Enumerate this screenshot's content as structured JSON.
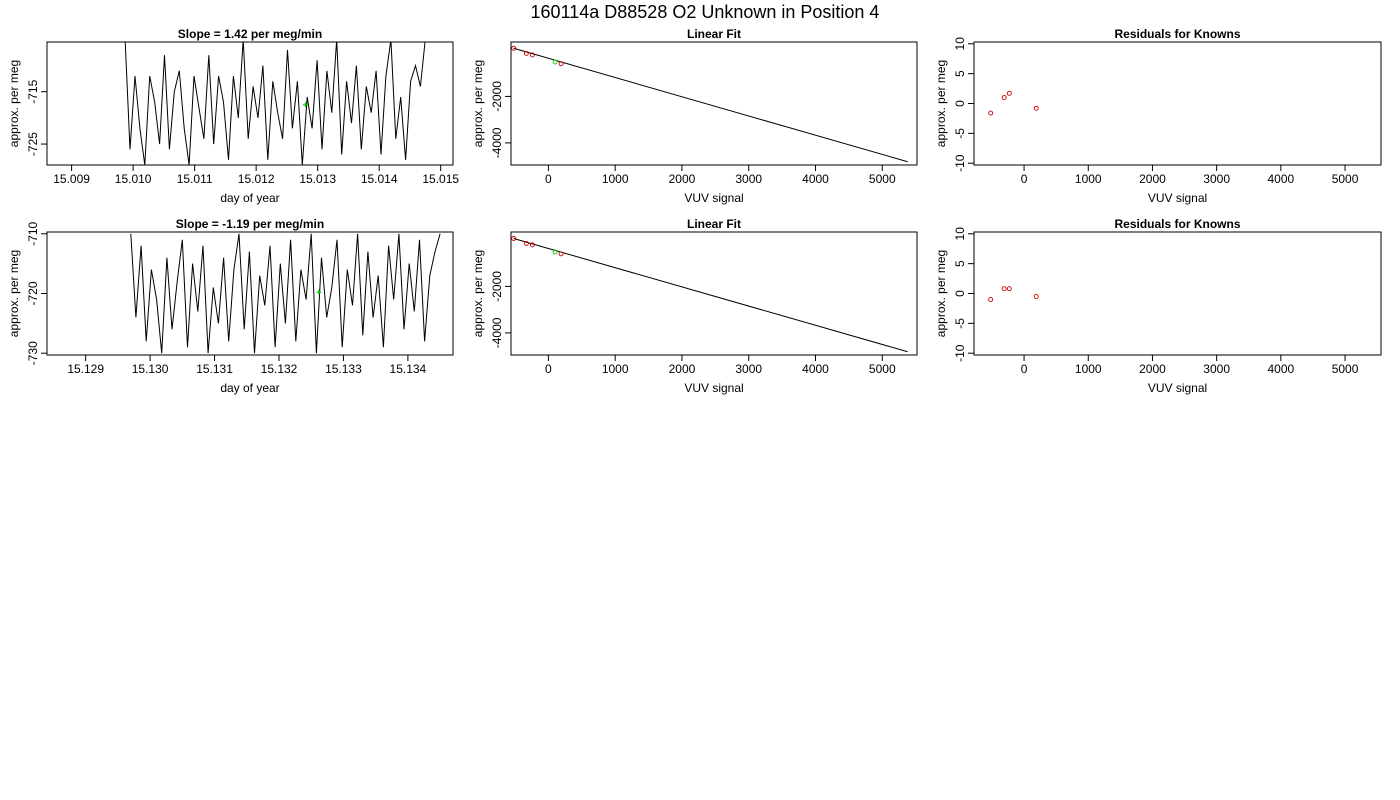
{
  "page_title": "160114a     D88528   O2 Unknown in Position  4",
  "chart_data": [
    {
      "type": "line",
      "title": "Slope =  1.42  per meg/min",
      "xlabel": "day of year",
      "ylabel": "approx. per meg",
      "xlim": [
        15.0086,
        15.0152
      ],
      "ylim": [
        -729,
        -705.5
      ],
      "xticks": [
        "15.009",
        "15.010",
        "15.011",
        "15.012",
        "15.013",
        "15.014",
        "15.015"
      ],
      "xtick_values": [
        15.009,
        15.01,
        15.011,
        15.012,
        15.013,
        15.014,
        15.015
      ],
      "yticks": [
        "-715",
        "-725"
      ],
      "ytick_values": [
        -715,
        -725
      ],
      "line_color": "#000000",
      "highlight_color": "#00cc00",
      "series": [
        {
          "x": [
            15.00987,
            15.00995,
            15.01003,
            15.01011,
            15.01019,
            15.01027,
            15.01035,
            15.01043,
            15.01051,
            15.01059,
            15.01067,
            15.01075,
            15.01083,
            15.01091,
            15.01099,
            15.01107,
            15.01115,
            15.01123,
            15.01131,
            15.01139,
            15.01147,
            15.01155,
            15.01163,
            15.01171,
            15.01179,
            15.01187,
            15.01195,
            15.01203,
            15.01211,
            15.01219,
            15.01227,
            15.01235,
            15.01243,
            15.01251,
            15.01259,
            15.01267,
            15.01275,
            15.01283,
            15.01291,
            15.01299,
            15.01307,
            15.01315,
            15.01323,
            15.01331,
            15.01339,
            15.01347,
            15.01355,
            15.01363,
            15.01371,
            15.01379,
            15.01387,
            15.01395,
            15.01403,
            15.01411,
            15.01419,
            15.01427,
            15.01435,
            15.01443,
            15.01451,
            15.01459,
            15.01467,
            15.01475
          ],
          "y": [
            -705,
            -726,
            -712,
            -722,
            -729,
            -712,
            -717,
            -725,
            -708,
            -726,
            -715,
            -711,
            -722,
            -729,
            -712,
            -718,
            -724,
            -708,
            -725,
            -712,
            -717,
            -728,
            -712,
            -720,
            -705,
            -724,
            -714,
            -720,
            -710,
            -728,
            -713,
            -719,
            -724,
            -707,
            -722,
            -713,
            -729,
            -716,
            -722,
            -709,
            -726,
            -711,
            -719,
            -705,
            -727,
            -713,
            -721,
            -710,
            -726,
            -714,
            -719,
            -711,
            -727,
            -712,
            -705,
            -724,
            -716,
            -728,
            -713,
            -710,
            -714,
            -705
          ]
        }
      ],
      "highlight_point": {
        "x": 15.0128,
        "y": -717.5
      }
    },
    {
      "type": "scatter",
      "title": "Linear Fit",
      "xlabel": "VUV signal",
      "ylabel": "approx. per meg",
      "xlim": [
        -560,
        5520
      ],
      "ylim": [
        -4950,
        340
      ],
      "xticks": [
        "0",
        "1000",
        "2000",
        "3000",
        "4000",
        "5000"
      ],
      "xtick_values": [
        0,
        1000,
        2000,
        3000,
        4000,
        5000
      ],
      "yticks": [
        "-2000",
        "-4000"
      ],
      "ytick_values": [
        -2000,
        -4000
      ],
      "points_known": {
        "x": [
          -520,
          -330,
          -240,
          190
        ],
        "y": [
          70,
          -150,
          -215,
          -595
        ],
        "color": "#cc0000"
      },
      "point_unknown": {
        "x": 100,
        "y": -520,
        "color": "#00cc00"
      },
      "fit_line": {
        "x": [
          -520,
          5380
        ],
        "y": [
          70,
          -4810
        ],
        "color": "#000000"
      }
    },
    {
      "type": "scatter",
      "title": "Residuals for Knowns",
      "xlabel": "VUV signal",
      "ylabel": "approx. per meg",
      "xlim": [
        -780,
        5560
      ],
      "ylim": [
        -10.3,
        10.3
      ],
      "xticks": [
        "0",
        "1000",
        "2000",
        "3000",
        "4000",
        "5000"
      ],
      "xtick_values": [
        0,
        1000,
        2000,
        3000,
        4000,
        5000
      ],
      "yticks": [
        "10",
        "5",
        "0",
        "-5",
        "-10"
      ],
      "ytick_values": [
        10,
        5,
        0,
        -5,
        -10
      ],
      "points_known": {
        "x": [
          -520,
          -310,
          -230,
          190
        ],
        "y": [
          -1.6,
          1.0,
          1.7,
          -0.8
        ],
        "color": "#cc0000"
      }
    },
    {
      "type": "line",
      "title": "Slope =  -1.19  per meg/min",
      "xlabel": "day of year",
      "ylabel": "approx. per meg",
      "xlim": [
        15.1284,
        15.1347
      ],
      "ylim": [
        -730.3,
        -709.7
      ],
      "xticks": [
        "15.129",
        "15.130",
        "15.131",
        "15.132",
        "15.133",
        "15.134"
      ],
      "xtick_values": [
        15.129,
        15.13,
        15.131,
        15.132,
        15.133,
        15.134
      ],
      "yticks": [
        "-710",
        "-720",
        "-730"
      ],
      "ytick_values": [
        -710,
        -720,
        -730
      ],
      "line_color": "#000000",
      "highlight_color": "#00cc00",
      "series": [
        {
          "x": [
            15.1297,
            15.12978,
            15.12986,
            15.12994,
            15.13002,
            15.1301,
            15.13018,
            15.13026,
            15.13034,
            15.13042,
            15.1305,
            15.13058,
            15.13066,
            15.13074,
            15.13082,
            15.1309,
            15.13098,
            15.13106,
            15.13114,
            15.13122,
            15.1313,
            15.13138,
            15.13146,
            15.13154,
            15.13162,
            15.1317,
            15.13178,
            15.13186,
            15.13194,
            15.13202,
            15.1321,
            15.13218,
            15.13226,
            15.13234,
            15.13242,
            15.1325,
            15.13258,
            15.13266,
            15.13274,
            15.13282,
            15.1329,
            15.13298,
            15.13306,
            15.13314,
            15.13322,
            15.1333,
            15.13338,
            15.13346,
            15.13354,
            15.13362,
            15.1337,
            15.13378,
            15.13386,
            15.13394,
            15.13402,
            15.1341,
            15.13418,
            15.13426,
            15.13434,
            15.13442,
            15.1345
          ],
          "y": [
            -710,
            -724,
            -712,
            -728,
            -716,
            -721,
            -730,
            -714,
            -726,
            -718,
            -711,
            -729,
            -715,
            -723,
            -712,
            -730,
            -719,
            -725,
            -714,
            -728,
            -716,
            -710,
            -726,
            -713,
            -730,
            -717,
            -722,
            -712,
            -729,
            -715,
            -725,
            -711,
            -728,
            -716,
            -721,
            -710,
            -730,
            -714,
            -724,
            -719,
            -711,
            -729,
            -716,
            -722,
            -710,
            -727,
            -713,
            -724,
            -717,
            -729,
            -712,
            -721,
            -710,
            -726,
            -715,
            -723,
            -711,
            -728,
            -717,
            -713,
            -710
          ]
        }
      ],
      "highlight_point": {
        "x": 15.13262,
        "y": -719.8
      }
    },
    {
      "type": "scatter",
      "title": "Linear Fit",
      "xlabel": "VUV signal",
      "ylabel": "approx. per meg",
      "xlim": [
        -560,
        5520
      ],
      "ylim": [
        -4950,
        340
      ],
      "xticks": [
        "0",
        "1000",
        "2000",
        "3000",
        "4000",
        "5000"
      ],
      "xtick_values": [
        0,
        1000,
        2000,
        3000,
        4000,
        5000
      ],
      "yticks": [
        "-2000",
        "-4000"
      ],
      "ytick_values": [
        -2000,
        -4000
      ],
      "points_known": {
        "x": [
          -520,
          -330,
          -240,
          190
        ],
        "y": [
          60,
          -150,
          -215,
          -600
        ],
        "color": "#cc0000"
      },
      "point_unknown": {
        "x": 100,
        "y": -520,
        "color": "#00cc00"
      },
      "fit_line": {
        "x": [
          -520,
          5380
        ],
        "y": [
          60,
          -4810
        ],
        "color": "#000000"
      }
    },
    {
      "type": "scatter",
      "title": "Residuals for Knowns",
      "xlabel": "VUV signal",
      "ylabel": "approx. per meg",
      "xlim": [
        -780,
        5560
      ],
      "ylim": [
        -10.3,
        10.3
      ],
      "xticks": [
        "0",
        "1000",
        "2000",
        "3000",
        "4000",
        "5000"
      ],
      "xtick_values": [
        0,
        1000,
        2000,
        3000,
        4000,
        5000
      ],
      "yticks": [
        "10",
        "5",
        "0",
        "-5",
        "-10"
      ],
      "ytick_values": [
        10,
        5,
        0,
        -5,
        -10
      ],
      "points_known": {
        "x": [
          -520,
          -310,
          -230,
          190
        ],
        "y": [
          -1.0,
          0.8,
          0.8,
          -0.5
        ],
        "color": "#cc0000"
      }
    }
  ]
}
